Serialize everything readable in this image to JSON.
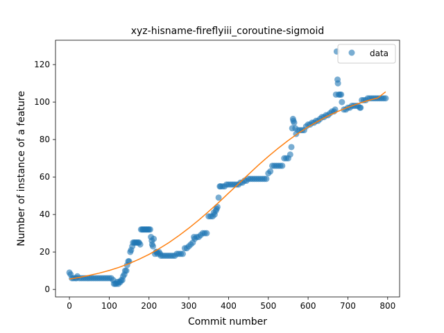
{
  "chart_data": {
    "type": "scatter",
    "title": "xyz-hisname-fireflyiii_coroutine-sigmoid",
    "xlabel": "Commit number",
    "ylabel": "Number of instance of a feature",
    "xlim": [
      -35,
      830
    ],
    "ylim": [
      -4,
      133
    ],
    "x_ticks": [
      0,
      100,
      200,
      300,
      400,
      500,
      600,
      700,
      800
    ],
    "y_ticks": [
      0,
      20,
      40,
      60,
      80,
      100,
      120
    ],
    "grid": false,
    "legend": {
      "position": "top-right",
      "entries": [
        "data"
      ]
    },
    "colors": {
      "data": "#1f77b4",
      "fit": "#ff7f0e"
    },
    "series": [
      {
        "name": "data",
        "kind": "scatter",
        "points": [
          [
            0,
            9
          ],
          [
            3,
            8
          ],
          [
            6,
            6
          ],
          [
            10,
            6
          ],
          [
            15,
            6
          ],
          [
            18,
            6
          ],
          [
            20,
            7
          ],
          [
            25,
            6
          ],
          [
            30,
            6
          ],
          [
            35,
            6
          ],
          [
            40,
            6
          ],
          [
            45,
            6
          ],
          [
            50,
            6
          ],
          [
            55,
            6
          ],
          [
            60,
            6
          ],
          [
            65,
            6
          ],
          [
            70,
            6
          ],
          [
            75,
            6
          ],
          [
            80,
            6
          ],
          [
            85,
            6
          ],
          [
            90,
            6
          ],
          [
            95,
            6
          ],
          [
            100,
            6
          ],
          [
            105,
            6
          ],
          [
            110,
            5
          ],
          [
            112,
            3
          ],
          [
            115,
            3
          ],
          [
            118,
            3
          ],
          [
            120,
            4
          ],
          [
            123,
            3
          ],
          [
            125,
            4
          ],
          [
            128,
            4
          ],
          [
            130,
            5
          ],
          [
            133,
            5
          ],
          [
            135,
            7
          ],
          [
            138,
            8
          ],
          [
            140,
            10
          ],
          [
            143,
            10
          ],
          [
            145,
            13
          ],
          [
            148,
            15
          ],
          [
            150,
            15
          ],
          [
            153,
            20
          ],
          [
            155,
            21
          ],
          [
            158,
            23
          ],
          [
            160,
            25
          ],
          [
            163,
            25
          ],
          [
            165,
            25
          ],
          [
            168,
            25
          ],
          [
            170,
            25
          ],
          [
            173,
            25
          ],
          [
            175,
            25
          ],
          [
            178,
            24
          ],
          [
            180,
            32
          ],
          [
            183,
            32
          ],
          [
            185,
            32
          ],
          [
            188,
            32
          ],
          [
            190,
            32
          ],
          [
            193,
            32
          ],
          [
            195,
            32
          ],
          [
            198,
            32
          ],
          [
            200,
            32
          ],
          [
            203,
            32
          ],
          [
            205,
            28
          ],
          [
            207,
            26
          ],
          [
            208,
            24
          ],
          [
            210,
            23
          ],
          [
            212,
            27
          ],
          [
            215,
            19
          ],
          [
            218,
            20
          ],
          [
            220,
            20
          ],
          [
            222,
            19
          ],
          [
            225,
            20
          ],
          [
            228,
            19
          ],
          [
            230,
            18
          ],
          [
            235,
            18
          ],
          [
            240,
            18
          ],
          [
            245,
            18
          ],
          [
            250,
            18
          ],
          [
            255,
            18
          ],
          [
            260,
            18
          ],
          [
            265,
            18
          ],
          [
            270,
            19
          ],
          [
            275,
            19
          ],
          [
            280,
            19
          ],
          [
            285,
            19
          ],
          [
            290,
            22
          ],
          [
            295,
            22
          ],
          [
            300,
            23
          ],
          [
            305,
            24
          ],
          [
            310,
            25
          ],
          [
            313,
            28
          ],
          [
            315,
            27
          ],
          [
            320,
            28
          ],
          [
            325,
            28
          ],
          [
            330,
            29
          ],
          [
            335,
            30
          ],
          [
            340,
            30
          ],
          [
            345,
            30
          ],
          [
            350,
            39
          ],
          [
            355,
            39
          ],
          [
            360,
            39
          ],
          [
            363,
            41
          ],
          [
            365,
            40
          ],
          [
            368,
            42
          ],
          [
            370,
            43
          ],
          [
            372,
            44
          ],
          [
            375,
            49
          ],
          [
            378,
            55
          ],
          [
            380,
            55
          ],
          [
            385,
            55
          ],
          [
            390,
            55
          ],
          [
            395,
            56
          ],
          [
            400,
            56
          ],
          [
            405,
            56
          ],
          [
            410,
            56
          ],
          [
            415,
            56
          ],
          [
            420,
            56
          ],
          [
            425,
            56
          ],
          [
            430,
            57
          ],
          [
            435,
            57
          ],
          [
            440,
            58
          ],
          [
            445,
            58
          ],
          [
            450,
            59
          ],
          [
            455,
            59
          ],
          [
            460,
            59
          ],
          [
            465,
            59
          ],
          [
            470,
            59
          ],
          [
            475,
            59
          ],
          [
            480,
            59
          ],
          [
            485,
            59
          ],
          [
            490,
            59
          ],
          [
            495,
            59
          ],
          [
            500,
            62
          ],
          [
            505,
            63
          ],
          [
            510,
            66
          ],
          [
            515,
            66
          ],
          [
            520,
            66
          ],
          [
            525,
            66
          ],
          [
            530,
            66
          ],
          [
            535,
            66
          ],
          [
            540,
            70
          ],
          [
            545,
            70
          ],
          [
            550,
            70
          ],
          [
            555,
            72
          ],
          [
            558,
            76
          ],
          [
            560,
            86
          ],
          [
            562,
            91
          ],
          [
            563,
            90
          ],
          [
            565,
            89
          ],
          [
            568,
            86
          ],
          [
            570,
            83
          ],
          [
            575,
            85
          ],
          [
            580,
            85
          ],
          [
            585,
            85
          ],
          [
            590,
            85
          ],
          [
            595,
            87
          ],
          [
            600,
            88
          ],
          [
            605,
            88
          ],
          [
            610,
            89
          ],
          [
            615,
            89
          ],
          [
            620,
            90
          ],
          [
            625,
            90
          ],
          [
            630,
            91
          ],
          [
            635,
            92
          ],
          [
            640,
            92
          ],
          [
            645,
            93
          ],
          [
            650,
            93
          ],
          [
            655,
            94
          ],
          [
            660,
            95
          ],
          [
            665,
            95
          ],
          [
            668,
            96
          ],
          [
            670,
            104
          ],
          [
            672,
            127
          ],
          [
            674,
            112
          ],
          [
            675,
            110
          ],
          [
            677,
            104
          ],
          [
            680,
            104
          ],
          [
            683,
            104
          ],
          [
            685,
            100
          ],
          [
            690,
            96
          ],
          [
            695,
            96
          ],
          [
            700,
            97
          ],
          [
            705,
            97
          ],
          [
            710,
            98
          ],
          [
            715,
            98
          ],
          [
            720,
            98
          ],
          [
            725,
            98
          ],
          [
            730,
            97
          ],
          [
            732,
            97
          ],
          [
            735,
            101
          ],
          [
            740,
            101
          ],
          [
            745,
            101
          ],
          [
            750,
            102
          ],
          [
            755,
            102
          ],
          [
            760,
            102
          ],
          [
            765,
            102
          ],
          [
            770,
            102
          ],
          [
            775,
            102
          ],
          [
            780,
            102
          ],
          [
            785,
            102
          ],
          [
            790,
            102
          ],
          [
            795,
            102
          ]
        ]
      },
      {
        "kind": "line",
        "points": [
          [
            0,
            5.5
          ],
          [
            25,
            6.4
          ],
          [
            50,
            7.5
          ],
          [
            75,
            8.7
          ],
          [
            100,
            10.1
          ],
          [
            125,
            11.8
          ],
          [
            150,
            13.8
          ],
          [
            175,
            16.1
          ],
          [
            200,
            18.7
          ],
          [
            225,
            21.7
          ],
          [
            250,
            25.0
          ],
          [
            275,
            28.7
          ],
          [
            300,
            32.7
          ],
          [
            325,
            37.0
          ],
          [
            350,
            41.6
          ],
          [
            375,
            46.4
          ],
          [
            400,
            51.4
          ],
          [
            425,
            56.4
          ],
          [
            450,
            61.4
          ],
          [
            475,
            66.3
          ],
          [
            500,
            71.0
          ],
          [
            525,
            75.4
          ],
          [
            550,
            79.5
          ],
          [
            575,
            83.3
          ],
          [
            600,
            86.7
          ],
          [
            625,
            89.8
          ],
          [
            650,
            92.6
          ],
          [
            675,
            95.0
          ],
          [
            700,
            97.2
          ],
          [
            725,
            99.1
          ],
          [
            750,
            100.8
          ],
          [
            775,
            102.2
          ],
          [
            795,
            105.5
          ]
        ]
      }
    ]
  }
}
